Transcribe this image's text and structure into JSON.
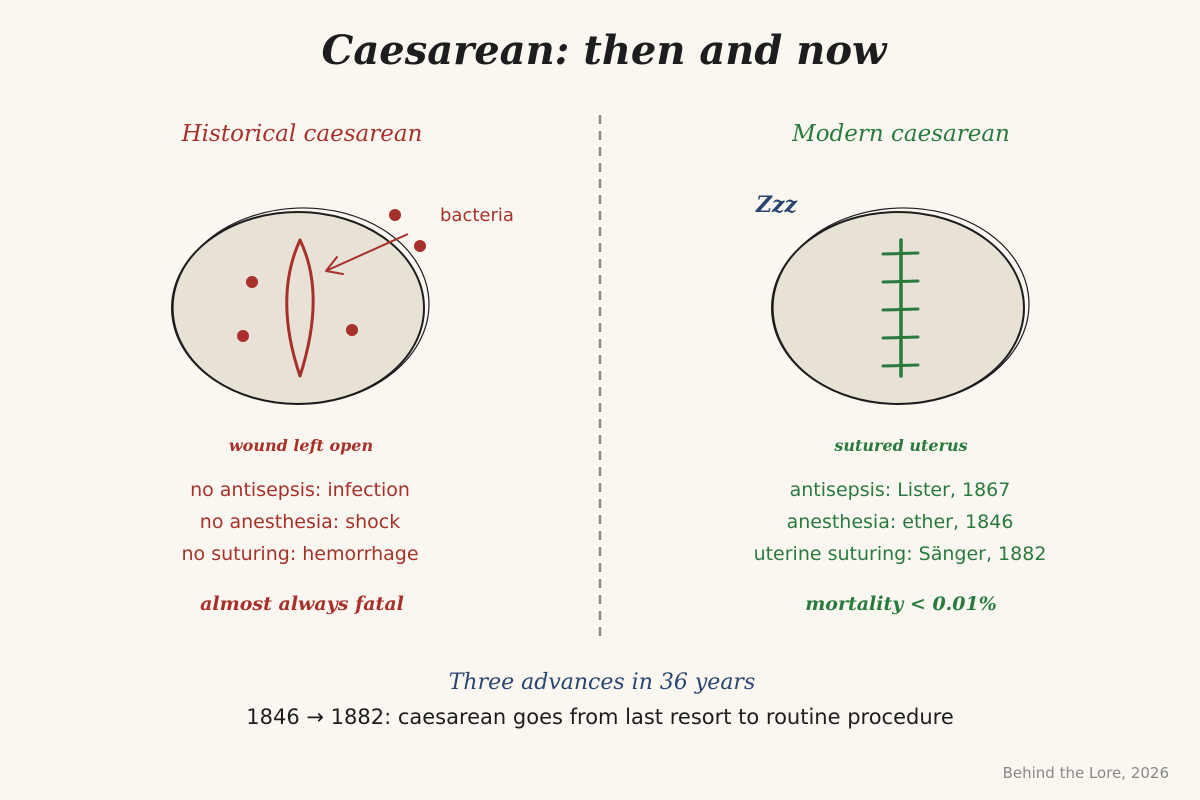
{
  "title": "Caesarean: then and now",
  "colors": {
    "historical": "#a8302a",
    "modern": "#2a7a3f",
    "navy": "#2a4670",
    "ink": "#1d1d1d",
    "fill": "#e8e1d5",
    "background": "#faf7f1",
    "muted": "#888888"
  },
  "historical": {
    "heading": "Historical caesarean",
    "pointer_label": "bacteria",
    "caption": "wound left open",
    "facts": [
      "no antisepsis: infection",
      "no anesthesia: shock",
      "no suturing: hemorrhage"
    ],
    "outcome": "almost always fatal"
  },
  "modern": {
    "heading": "Modern caesarean",
    "sleep_label": "Zzz",
    "caption": "sutured uterus",
    "facts": [
      "antisepsis: Lister, 1867",
      "anesthesia: ether, 1846",
      "uterine suturing: Sänger, 1882"
    ],
    "outcome": "mortality < 0.01%"
  },
  "summary": {
    "heading": "Three advances in 36 years",
    "text": "1846 → 1882: caesarean goes from last resort to routine procedure"
  },
  "credit": "Behind the Lore, 2026"
}
